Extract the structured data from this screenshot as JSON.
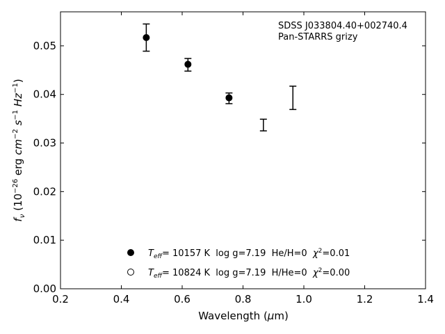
{
  "chart_data": {
    "type": "scatter",
    "xlabel_main": "Wavelength (",
    "xlabel_mu": "μ",
    "xlabel_unit": "m)",
    "ylabel_sym": "f",
    "ylabel_sub": "ν",
    "ylabel_open": " (10",
    "ylabel_exp": "−26",
    "ylabel_erg": " erg ",
    "ylabel_cm": "cm",
    "ylabel_cm_exp": "−2",
    "ylabel_s": "s",
    "ylabel_s_exp": "−1",
    "ylabel_hz": "Hz",
    "ylabel_hz_exp": "−1",
    "ylabel_close": ")",
    "xlim": [
      0.2,
      1.4
    ],
    "ylim": [
      0.0,
      0.057
    ],
    "xticks": [
      "0.2",
      "0.4",
      "0.6",
      "0.8",
      "1.0",
      "1.2",
      "1.4"
    ],
    "yticks": [
      "0.00",
      "0.01",
      "0.02",
      "0.03",
      "0.04",
      "0.05"
    ],
    "annotation": [
      "SDSS J033804.40+002740.4",
      "Pan-STARRS grizy"
    ],
    "observed": [
      {
        "x": 0.482,
        "y": 0.0517,
        "err": 0.0028
      },
      {
        "x": 0.619,
        "y": 0.0461,
        "err": 0.0013
      },
      {
        "x": 0.754,
        "y": 0.0392,
        "err": 0.0011
      },
      {
        "x": 0.867,
        "y": 0.0337,
        "err": 0.0012
      },
      {
        "x": 0.964,
        "y": 0.0393,
        "err": 0.0024
      }
    ],
    "model_filled": [
      {
        "x": 0.482,
        "y": 0.0517
      },
      {
        "x": 0.619,
        "y": 0.0462
      },
      {
        "x": 0.754,
        "y": 0.0393
      }
    ],
    "legend": [
      {
        "marker": "filled",
        "teff_sym": "T",
        "teff_sub": "eff",
        "text": "= 10157 K  log g=7.19  He/H=0  ",
        "chi_sym": "χ",
        "chi_exp": "2",
        "chi_val": "=0.01"
      },
      {
        "marker": "open",
        "teff_sym": "T",
        "teff_sub": "eff",
        "text": "= 10824 K  log g=7.19  H/He=0  ",
        "chi_sym": "χ",
        "chi_exp": "2",
        "chi_val": "=0.00"
      }
    ]
  }
}
